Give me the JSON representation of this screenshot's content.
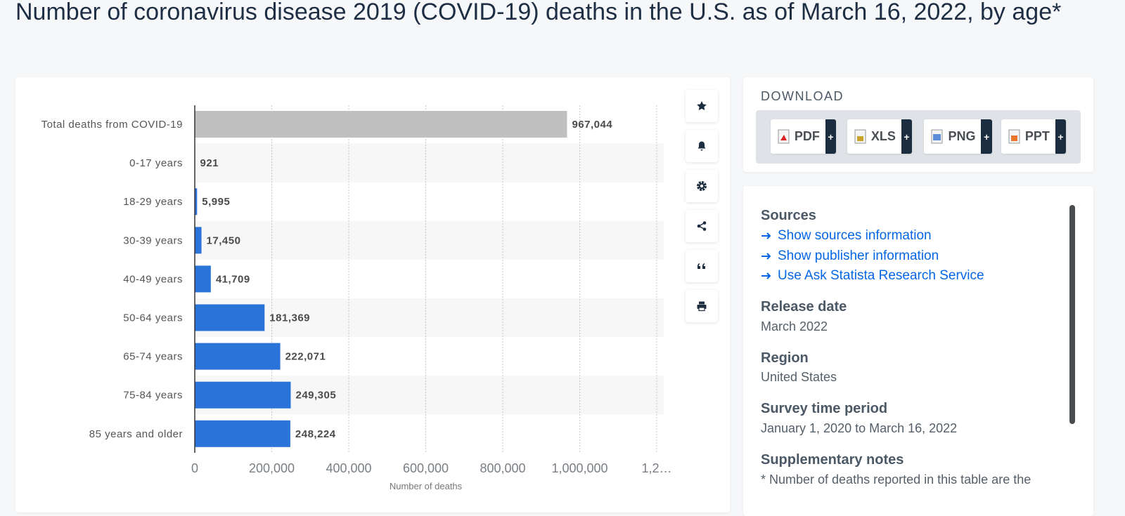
{
  "page": {
    "title": "Number of coronavirus disease 2019 (COVID-19) deaths in the U.S. as of March 16, 2022, by age*",
    "download": {
      "heading": "DOWNLOAD",
      "buttons": [
        "PDF",
        "XLS",
        "PNG",
        "PPT"
      ]
    },
    "sources": {
      "heading": "Sources",
      "links": [
        "Show sources information",
        "Show publisher information",
        "Use Ask Statista Research Service"
      ]
    },
    "details": [
      {
        "label": "Release date",
        "value": "March 2022"
      },
      {
        "label": "Region",
        "value": "United States"
      },
      {
        "label": "Survey time period",
        "value": "January 1, 2020 to March 16, 2022"
      },
      {
        "label": "Supplementary notes",
        "value": "* Number of deaths reported in this table are the"
      }
    ]
  },
  "chart_data": {
    "type": "hbar",
    "x_label": "Number of deaths",
    "categories": [
      "Total deaths from COVID-19",
      "0-17 years",
      "18-29 years",
      "30-39 years",
      "40-49 years",
      "50-64 years",
      "65-74 years",
      "75-84 years",
      "85 years and older"
    ],
    "values": [
      967044,
      921,
      5995,
      17450,
      41709,
      181369,
      222071,
      249305,
      248224
    ],
    "value_labels": [
      "967,044",
      "921",
      "5,995",
      "17,450",
      "41,709",
      "181,369",
      "222,071",
      "249,305",
      "248,224"
    ],
    "colors": [
      "#c0c0c0",
      "#2a73d9",
      "#2a73d9",
      "#2a73d9",
      "#2a73d9",
      "#2a73d9",
      "#2a73d9",
      "#2a73d9",
      "#2a73d9"
    ],
    "xlim": [
      0,
      1200000
    ],
    "xticks": [
      0,
      {
        "value": 200000,
        "label": "200,000"
      },
      {
        "value": 400000,
        "label": "400,000"
      },
      {
        "value": 600000,
        "label": "600,000"
      },
      {
        "value": 800000,
        "label": "800,000"
      },
      {
        "value": 1000000,
        "label": "1,000,000"
      },
      {
        "value": 1200000,
        "label": "1,2…"
      }
    ],
    "grid": true
  }
}
